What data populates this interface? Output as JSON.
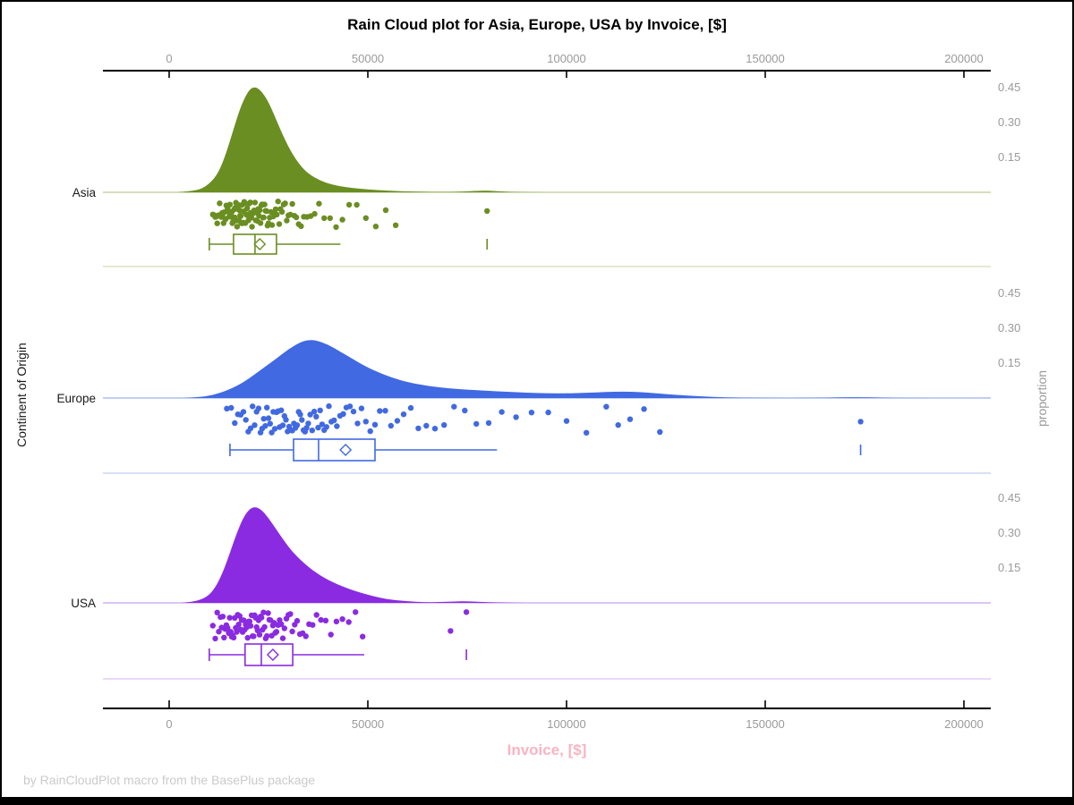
{
  "title": "Rain Cloud plot for Asia, Europe, USA by Invoice, [$]",
  "footnote": "by RainCloudPlot macro from the BasePlus package",
  "x_axis_label": "Invoice, [$]",
  "y_axis_label": "Continent of Origin",
  "right_axis_label": "proportion",
  "colors": {
    "x_label_pink": "#f8b4c2",
    "axis_text_gray": "#9a9a9a",
    "footnote_gray": "#cbcbcb",
    "axis_line_black": "#000000"
  },
  "chart_data": {
    "type": "raincloud (half-violin density + jittered strip + box plot per group)",
    "title": "Rain Cloud plot for Asia, Europe, USA by Invoice, [$]",
    "xlabel": "Invoice, [$]",
    "ylabel": "Continent of Origin",
    "right_ylabel": "proportion",
    "x_axis": {
      "min": 0,
      "max": 200000,
      "ticks": [
        0,
        50000,
        100000,
        150000,
        200000
      ],
      "tick_labels": [
        "0",
        "50000",
        "100000",
        "150000",
        "200000"
      ]
    },
    "proportion_axis": {
      "ticks": [
        0.45,
        0.3,
        0.15
      ],
      "tick_labels": [
        "0.45",
        "0.30",
        "0.15"
      ]
    },
    "groups": [
      {
        "name": "Asia",
        "color": "#6a8e21",
        "baseline_tint": "#bcca93",
        "separator_tint": "#dbe3c2",
        "density_peak_proportion": 0.455,
        "density_profile": [
          [
            2000,
            0
          ],
          [
            6000,
            0.005
          ],
          [
            9000,
            0.02
          ],
          [
            12000,
            0.07
          ],
          [
            14000,
            0.15
          ],
          [
            16000,
            0.26
          ],
          [
            18000,
            0.37
          ],
          [
            20000,
            0.44
          ],
          [
            21500,
            0.455
          ],
          [
            23000,
            0.44
          ],
          [
            25000,
            0.39
          ],
          [
            27000,
            0.31
          ],
          [
            29000,
            0.23
          ],
          [
            31000,
            0.165
          ],
          [
            33000,
            0.115
          ],
          [
            35000,
            0.08
          ],
          [
            38000,
            0.05
          ],
          [
            41000,
            0.033
          ],
          [
            45000,
            0.02
          ],
          [
            50000,
            0.012
          ],
          [
            55000,
            0.007
          ],
          [
            60000,
            0.004
          ],
          [
            66000,
            0.002
          ],
          [
            72000,
            0.002
          ],
          [
            77000,
            0.006
          ],
          [
            80000,
            0.008
          ],
          [
            84000,
            0.003
          ],
          [
            89000,
            0.001
          ],
          [
            95000,
            0
          ]
        ],
        "box": {
          "whisker_low": 10100,
          "q1": 16200,
          "median": 21600,
          "q3": 27000,
          "whisker_high": 43100,
          "mean": 22800,
          "outliers": [
            80000
          ]
        },
        "jitter_seed": 11,
        "points": [
          11000,
          11300,
          11600,
          11900,
          12100,
          12400,
          12700,
          12900,
          13100,
          13300,
          13500,
          13700,
          13900,
          14100,
          14250,
          14400,
          14550,
          14700,
          14850,
          15000,
          15150,
          15300,
          15450,
          15600,
          15750,
          15900,
          16050,
          16200,
          16350,
          16500,
          16650,
          16800,
          16950,
          17100,
          17250,
          17400,
          17550,
          17700,
          17850,
          18000,
          18150,
          18300,
          18450,
          18600,
          18750,
          18900,
          19050,
          19200,
          19350,
          19500,
          19650,
          19800,
          19950,
          20100,
          20250,
          20400,
          20550,
          20700,
          20850,
          21000,
          21200,
          21400,
          21600,
          21800,
          22000,
          22200,
          22400,
          22600,
          22800,
          23000,
          23200,
          23400,
          23600,
          23800,
          24000,
          24250,
          24500,
          24750,
          25000,
          25300,
          25600,
          25900,
          26200,
          26500,
          26800,
          27100,
          27400,
          27700,
          28000,
          28400,
          28800,
          29200,
          29600,
          30000,
          30500,
          31000,
          31500,
          32000,
          32600,
          33200,
          33900,
          34700,
          35600,
          36600,
          37700,
          39000,
          40500,
          42000,
          43600,
          45300,
          47200,
          49500,
          52000,
          54500,
          57000,
          80000
        ]
      },
      {
        "name": "Europe",
        "color": "#4169e1",
        "baseline_tint": "#9db1ea",
        "separator_tint": "#ccd6f4",
        "density_peak_proportion": 0.25,
        "density_profile": [
          [
            3000,
            0
          ],
          [
            7000,
            0.003
          ],
          [
            11000,
            0.012
          ],
          [
            15000,
            0.035
          ],
          [
            19000,
            0.07
          ],
          [
            23000,
            0.12
          ],
          [
            27000,
            0.17
          ],
          [
            30000,
            0.21
          ],
          [
            33000,
            0.24
          ],
          [
            35000,
            0.25
          ],
          [
            37000,
            0.248
          ],
          [
            40000,
            0.23
          ],
          [
            43000,
            0.2
          ],
          [
            46000,
            0.17
          ],
          [
            49000,
            0.14
          ],
          [
            52000,
            0.115
          ],
          [
            56000,
            0.088
          ],
          [
            60000,
            0.068
          ],
          [
            65000,
            0.052
          ],
          [
            70000,
            0.042
          ],
          [
            75000,
            0.036
          ],
          [
            80000,
            0.031
          ],
          [
            85000,
            0.027
          ],
          [
            90000,
            0.023
          ],
          [
            95000,
            0.02
          ],
          [
            100000,
            0.02
          ],
          [
            105000,
            0.022
          ],
          [
            110000,
            0.026
          ],
          [
            114000,
            0.028
          ],
          [
            118000,
            0.026
          ],
          [
            123000,
            0.02
          ],
          [
            128000,
            0.013
          ],
          [
            134000,
            0.007
          ],
          [
            140000,
            0.003
          ],
          [
            147000,
            0.001
          ],
          [
            155000,
            0.0005
          ],
          [
            163000,
            0.001
          ],
          [
            169000,
            0.003
          ],
          [
            174000,
            0.004
          ],
          [
            179000,
            0.002
          ],
          [
            185000,
            0.0005
          ],
          [
            192000,
            0
          ]
        ],
        "box": {
          "whisker_low": 15300,
          "q1": 31300,
          "median": 37600,
          "q3": 51800,
          "whisker_high": 82500,
          "mean": 44400,
          "outliers": [
            174000
          ]
        },
        "jitter_seed": 23,
        "points": [
          14500,
          15600,
          16500,
          17300,
          18000,
          18700,
          19300,
          19900,
          20500,
          21000,
          21500,
          22000,
          22500,
          23000,
          23400,
          23800,
          24200,
          24600,
          25000,
          25400,
          25800,
          26200,
          26600,
          27000,
          27400,
          27800,
          28200,
          28600,
          29000,
          29400,
          29800,
          30200,
          30600,
          31000,
          31400,
          31800,
          32200,
          32600,
          33000,
          33400,
          33800,
          34200,
          34600,
          35000,
          35500,
          36000,
          36500,
          37000,
          37500,
          38000,
          38500,
          39000,
          39600,
          40200,
          40800,
          41500,
          42200,
          43000,
          43800,
          44600,
          45500,
          46400,
          47400,
          48400,
          49500,
          50600,
          51800,
          53000,
          54400,
          55800,
          57400,
          59000,
          60800,
          62700,
          64700,
          66900,
          69200,
          71700,
          74400,
          77300,
          80400,
          83700,
          87300,
          91200,
          95400,
          100000,
          105000,
          110000,
          113000,
          116000,
          119500,
          123500,
          174000
        ]
      },
      {
        "name": "USA",
        "color": "#8a2be2",
        "baseline_tint": "#c9a0ee",
        "separator_tint": "#e4ccf7",
        "density_peak_proportion": 0.415,
        "density_profile": [
          [
            3000,
            0
          ],
          [
            6000,
            0.004
          ],
          [
            9000,
            0.02
          ],
          [
            11000,
            0.05
          ],
          [
            13000,
            0.11
          ],
          [
            15000,
            0.2
          ],
          [
            17000,
            0.3
          ],
          [
            19000,
            0.38
          ],
          [
            21000,
            0.415
          ],
          [
            23000,
            0.405
          ],
          [
            25000,
            0.365
          ],
          [
            27000,
            0.315
          ],
          [
            29000,
            0.265
          ],
          [
            31000,
            0.22
          ],
          [
            33000,
            0.185
          ],
          [
            35000,
            0.155
          ],
          [
            37000,
            0.13
          ],
          [
            39000,
            0.108
          ],
          [
            41000,
            0.09
          ],
          [
            44000,
            0.068
          ],
          [
            47000,
            0.05
          ],
          [
            50000,
            0.035
          ],
          [
            53000,
            0.022
          ],
          [
            56000,
            0.013
          ],
          [
            60000,
            0.007
          ],
          [
            64000,
            0.003
          ],
          [
            68000,
            0.003
          ],
          [
            72000,
            0.006
          ],
          [
            75000,
            0.007
          ],
          [
            79000,
            0.004
          ],
          [
            84000,
            0.001
          ],
          [
            90000,
            0
          ]
        ],
        "box": {
          "whisker_low": 10100,
          "q1": 19100,
          "median": 23200,
          "q3": 31100,
          "whisker_high": 49100,
          "mean": 26100,
          "outliers": [
            74800
          ]
        },
        "jitter_seed": 37,
        "points": [
          11000,
          11600,
          12100,
          12500,
          12900,
          13200,
          13500,
          13800,
          14100,
          14400,
          14700,
          15000,
          15250,
          15500,
          15750,
          16000,
          16250,
          16500,
          16750,
          17000,
          17250,
          17500,
          17750,
          18000,
          18250,
          18500,
          18750,
          19000,
          19250,
          19500,
          19750,
          20000,
          20250,
          20500,
          20750,
          21000,
          21250,
          21500,
          21750,
          22000,
          22250,
          22500,
          22750,
          23000,
          23250,
          23500,
          23750,
          24000,
          24300,
          24600,
          24900,
          25200,
          25500,
          25800,
          26100,
          26400,
          26700,
          27000,
          27400,
          27800,
          28200,
          28600,
          29000,
          29500,
          30000,
          30500,
          31000,
          31600,
          32200,
          32900,
          33600,
          34400,
          35200,
          36100,
          37100,
          38200,
          39400,
          40700,
          42100,
          43600,
          45200,
          46900,
          48700,
          70800,
          74800
        ]
      }
    ]
  }
}
